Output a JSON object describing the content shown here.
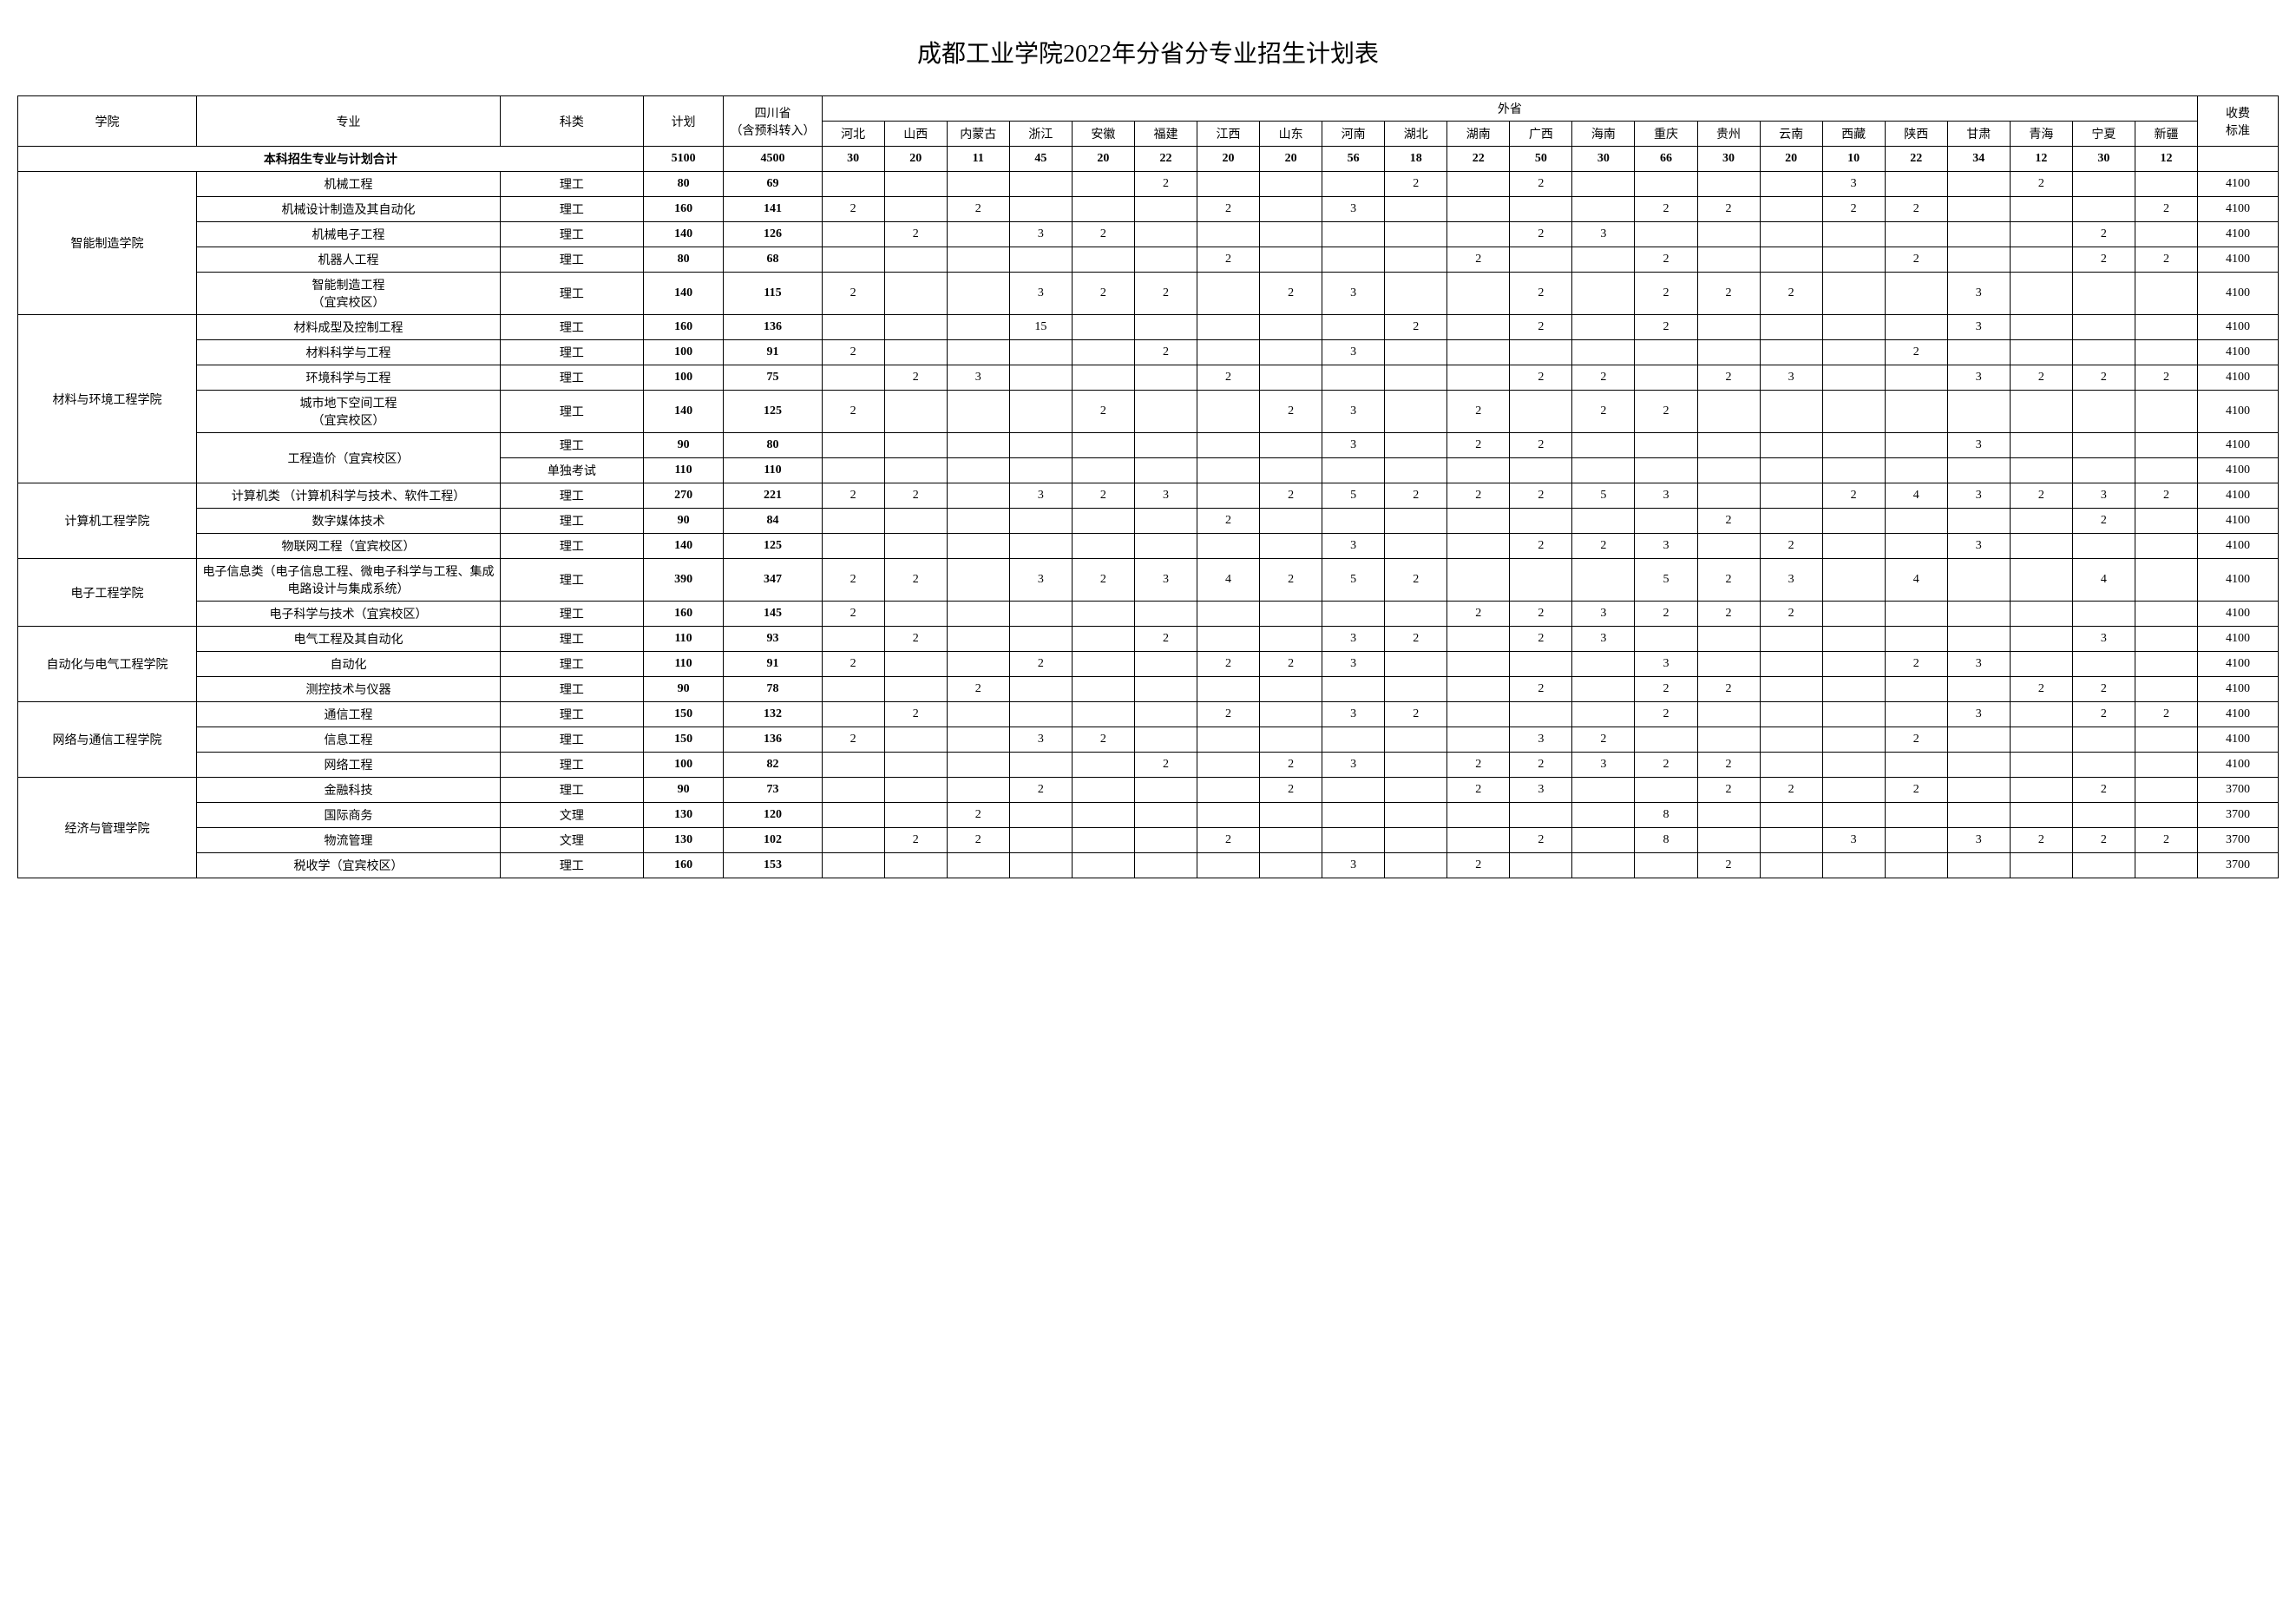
{
  "title": "成都工业学院2022年分省分专业招生计划表",
  "headers": {
    "school": "学院",
    "major": "专业",
    "category": "科类",
    "plan": "计划",
    "sichuan": "四川省\n（含预科转入）",
    "outside": "外省",
    "fee": "收费\n标准",
    "provinces": [
      "河北",
      "山西",
      "内蒙古",
      "浙江",
      "安徽",
      "福建",
      "江西",
      "山东",
      "河南",
      "湖北",
      "湖南",
      "广西",
      "海南",
      "重庆",
      "贵州",
      "云南",
      "西藏",
      "陕西",
      "甘肃",
      "青海",
      "宁夏",
      "新疆"
    ]
  },
  "total": {
    "label": "本科招生专业与计划合计",
    "plan": "5100",
    "sichuan": "4500",
    "provinces": [
      "30",
      "20",
      "11",
      "45",
      "20",
      "22",
      "20",
      "20",
      "56",
      "18",
      "22",
      "50",
      "30",
      "66",
      "30",
      "20",
      "10",
      "22",
      "34",
      "12",
      "30",
      "12"
    ],
    "fee": ""
  },
  "schools": [
    {
      "name": "智能制造学院",
      "rows": [
        {
          "major": "机械工程",
          "category": "理工",
          "plan": "80",
          "sichuan": "69",
          "p": [
            "",
            "",
            "",
            "",
            "",
            "2",
            "",
            "",
            "",
            "2",
            "",
            "2",
            "",
            "",
            "",
            "",
            "3",
            "",
            "",
            "2",
            "",
            ""
          ],
          "fee": "4100"
        },
        {
          "major": "机械设计制造及其自动化",
          "category": "理工",
          "plan": "160",
          "sichuan": "141",
          "p": [
            "2",
            "",
            "2",
            "",
            "",
            "",
            "2",
            "",
            "3",
            "",
            "",
            "",
            "",
            "2",
            "2",
            "",
            "2",
            "2",
            "",
            "",
            "",
            "2"
          ],
          "fee": "4100"
        },
        {
          "major": "机械电子工程",
          "category": "理工",
          "plan": "140",
          "sichuan": "126",
          "p": [
            "",
            "2",
            "",
            "3",
            "2",
            "",
            "",
            "",
            "",
            "",
            "",
            "2",
            "3",
            "",
            "",
            "",
            "",
            "",
            "",
            "",
            "2",
            ""
          ],
          "fee": "4100"
        },
        {
          "major": "机器人工程",
          "category": "理工",
          "plan": "80",
          "sichuan": "68",
          "p": [
            "",
            "",
            "",
            "",
            "",
            "",
            "2",
            "",
            "",
            "",
            "2",
            "",
            "",
            "2",
            "",
            "",
            "",
            "2",
            "",
            "",
            "2",
            "2"
          ],
          "fee": "4100"
        },
        {
          "major": "智能制造工程\n（宜宾校区）",
          "category": "理工",
          "plan": "140",
          "sichuan": "115",
          "p": [
            "2",
            "",
            "",
            "3",
            "2",
            "2",
            "",
            "2",
            "3",
            "",
            "",
            "2",
            "",
            "2",
            "2",
            "2",
            "",
            "",
            "3",
            "",
            "",
            ""
          ],
          "fee": "4100"
        }
      ]
    },
    {
      "name": "材料与环境工程学院",
      "rows": [
        {
          "major": "材料成型及控制工程",
          "category": "理工",
          "plan": "160",
          "sichuan": "136",
          "p": [
            "",
            "",
            "",
            "15",
            "",
            "",
            "",
            "",
            "",
            "2",
            "",
            "2",
            "",
            "2",
            "",
            "",
            "",
            "",
            "3",
            "",
            "",
            ""
          ],
          "fee": "4100"
        },
        {
          "major": "材料科学与工程",
          "category": "理工",
          "plan": "100",
          "sichuan": "91",
          "p": [
            "2",
            "",
            "",
            "",
            "",
            "2",
            "",
            "",
            "3",
            "",
            "",
            "",
            "",
            "",
            "",
            "",
            "",
            "2",
            "",
            "",
            "",
            ""
          ],
          "fee": "4100"
        },
        {
          "major": "环境科学与工程",
          "category": "理工",
          "plan": "100",
          "sichuan": "75",
          "p": [
            "",
            "2",
            "3",
            "",
            "",
            "",
            "2",
            "",
            "",
            "",
            "",
            "2",
            "2",
            "",
            "2",
            "3",
            "",
            "",
            "3",
            "2",
            "2",
            "2"
          ],
          "fee": "4100"
        },
        {
          "major": "城市地下空间工程\n（宜宾校区）",
          "category": "理工",
          "plan": "140",
          "sichuan": "125",
          "p": [
            "2",
            "",
            "",
            "",
            "2",
            "",
            "",
            "2",
            "3",
            "",
            "2",
            "",
            "2",
            "2",
            "",
            "",
            "",
            "",
            "",
            "",
            "",
            ""
          ],
          "fee": "4100"
        },
        {
          "major": "工程造价（宜宾校区）",
          "category": "理工",
          "plan": "90",
          "sichuan": "80",
          "p": [
            "",
            "",
            "",
            "",
            "",
            "",
            "",
            "",
            "3",
            "",
            "2",
            "2",
            "",
            "",
            "",
            "",
            "",
            "",
            "3",
            "",
            "",
            ""
          ],
          "fee": "4100",
          "rowspan": 2,
          "majorRowspan": true
        },
        {
          "major": "",
          "category": "单独考试",
          "plan": "110",
          "sichuan": "110",
          "p": [
            "",
            "",
            "",
            "",
            "",
            "",
            "",
            "",
            "",
            "",
            "",
            "",
            "",
            "",
            "",
            "",
            "",
            "",
            "",
            "",
            "",
            ""
          ],
          "fee": "4100",
          "skipMajor": true
        }
      ]
    },
    {
      "name": "计算机工程学院",
      "rows": [
        {
          "major": "计算机类 （计算机科学与技术、软件工程）",
          "category": "理工",
          "plan": "270",
          "sichuan": "221",
          "p": [
            "2",
            "2",
            "",
            "3",
            "2",
            "3",
            "",
            "2",
            "5",
            "2",
            "2",
            "2",
            "5",
            "3",
            "",
            "",
            "2",
            "4",
            "3",
            "2",
            "3",
            "2"
          ],
          "fee": "4100"
        },
        {
          "major": "数字媒体技术",
          "category": "理工",
          "plan": "90",
          "sichuan": "84",
          "p": [
            "",
            "",
            "",
            "",
            "",
            "",
            "2",
            "",
            "",
            "",
            "",
            "",
            "",
            "",
            "2",
            "",
            "",
            "",
            "",
            "",
            "2",
            ""
          ],
          "fee": "4100"
        },
        {
          "major": "物联网工程（宜宾校区）",
          "category": "理工",
          "plan": "140",
          "sichuan": "125",
          "p": [
            "",
            "",
            "",
            "",
            "",
            "",
            "",
            "",
            "3",
            "",
            "",
            "2",
            "2",
            "3",
            "",
            "2",
            "",
            "",
            "3",
            "",
            "",
            ""
          ],
          "fee": "4100"
        }
      ]
    },
    {
      "name": "电子工程学院",
      "rows": [
        {
          "major": "电子信息类（电子信息工程、微电子科学与工程、集成电路设计与集成系统）",
          "category": "理工",
          "plan": "390",
          "sichuan": "347",
          "p": [
            "2",
            "2",
            "",
            "3",
            "2",
            "3",
            "4",
            "2",
            "5",
            "2",
            "",
            "",
            "",
            "5",
            "2",
            "3",
            "",
            "4",
            "",
            "",
            "4",
            ""
          ],
          "fee": "4100"
        },
        {
          "major": "电子科学与技术（宜宾校区）",
          "category": "理工",
          "plan": "160",
          "sichuan": "145",
          "p": [
            "2",
            "",
            "",
            "",
            "",
            "",
            "",
            "",
            "",
            "",
            "2",
            "2",
            "3",
            "2",
            "2",
            "2",
            "",
            "",
            "",
            "",
            "",
            ""
          ],
          "fee": "4100"
        }
      ]
    },
    {
      "name": "自动化与电气工程学院",
      "rows": [
        {
          "major": "电气工程及其自动化",
          "category": "理工",
          "plan": "110",
          "sichuan": "93",
          "p": [
            "",
            "2",
            "",
            "",
            "",
            "2",
            "",
            "",
            "3",
            "2",
            "",
            "2",
            "3",
            "",
            "",
            "",
            "",
            "",
            "",
            "",
            "3",
            ""
          ],
          "fee": "4100"
        },
        {
          "major": "自动化",
          "category": "理工",
          "plan": "110",
          "sichuan": "91",
          "p": [
            "2",
            "",
            "",
            "2",
            "",
            "",
            "2",
            "2",
            "3",
            "",
            "",
            "",
            "",
            "3",
            "",
            "",
            "",
            "2",
            "3",
            "",
            "",
            ""
          ],
          "fee": "4100"
        },
        {
          "major": "测控技术与仪器",
          "category": "理工",
          "plan": "90",
          "sichuan": "78",
          "p": [
            "",
            "",
            "2",
            "",
            "",
            "",
            "",
            "",
            "",
            "",
            "",
            "2",
            "",
            "2",
            "2",
            "",
            "",
            "",
            "",
            "2",
            "2",
            ""
          ],
          "fee": "4100"
        }
      ]
    },
    {
      "name": "网络与通信工程学院",
      "rows": [
        {
          "major": "通信工程",
          "category": "理工",
          "plan": "150",
          "sichuan": "132",
          "p": [
            "",
            "2",
            "",
            "",
            "",
            "",
            "2",
            "",
            "3",
            "2",
            "",
            "",
            "",
            "2",
            "",
            "",
            "",
            "",
            "3",
            "",
            "2",
            "2"
          ],
          "fee": "4100"
        },
        {
          "major": "信息工程",
          "category": "理工",
          "plan": "150",
          "sichuan": "136",
          "p": [
            "2",
            "",
            "",
            "3",
            "2",
            "",
            "",
            "",
            "",
            "",
            "",
            "3",
            "2",
            "",
            "",
            "",
            "",
            "2",
            "",
            "",
            "",
            ""
          ],
          "fee": "4100"
        },
        {
          "major": "网络工程",
          "category": "理工",
          "plan": "100",
          "sichuan": "82",
          "p": [
            "",
            "",
            "",
            "",
            "",
            "2",
            "",
            "2",
            "3",
            "",
            "2",
            "2",
            "3",
            "2",
            "2",
            "",
            "",
            "",
            "",
            "",
            "",
            ""
          ],
          "fee": "4100"
        }
      ]
    },
    {
      "name": "经济与管理学院",
      "rows": [
        {
          "major": "金融科技",
          "category": "理工",
          "plan": "90",
          "sichuan": "73",
          "p": [
            "",
            "",
            "",
            "2",
            "",
            "",
            "",
            "2",
            "",
            "",
            "2",
            "3",
            "",
            "",
            "2",
            "2",
            "",
            "2",
            "",
            "",
            "2",
            ""
          ],
          "fee": "3700"
        },
        {
          "major": "国际商务",
          "category": "文理",
          "plan": "130",
          "sichuan": "120",
          "p": [
            "",
            "",
            "2",
            "",
            "",
            "",
            "",
            "",
            "",
            "",
            "",
            "",
            "",
            "8",
            "",
            "",
            "",
            "",
            "",
            "",
            "",
            ""
          ],
          "fee": "3700"
        },
        {
          "major": "物流管理",
          "category": "文理",
          "plan": "130",
          "sichuan": "102",
          "p": [
            "",
            "2",
            "2",
            "",
            "",
            "",
            "2",
            "",
            "",
            "",
            "",
            "2",
            "",
            "8",
            "",
            "",
            "3",
            "",
            "3",
            "2",
            "2",
            "2"
          ],
          "fee": "3700"
        },
        {
          "major": "税收学（宜宾校区）",
          "category": "理工",
          "plan": "160",
          "sichuan": "153",
          "p": [
            "",
            "",
            "",
            "",
            "",
            "",
            "",
            "",
            "3",
            "",
            "2",
            "",
            "",
            "",
            "2",
            "",
            "",
            "",
            "",
            "",
            "",
            ""
          ],
          "fee": "3700"
        }
      ]
    }
  ]
}
